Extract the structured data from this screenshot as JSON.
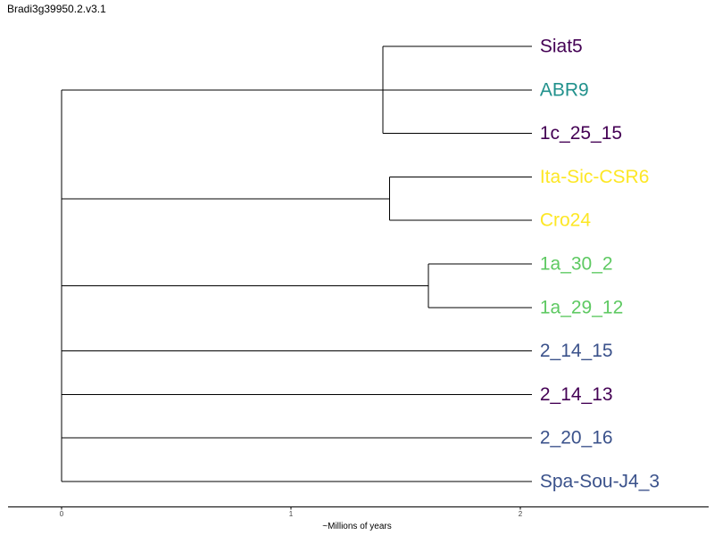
{
  "title": "Bradi3g39950.2.v3.1",
  "colors": {
    "purple": "#440154",
    "teal": "#21918c",
    "yellow": "#fde725",
    "green": "#5ec962",
    "blue": "#3b528b"
  },
  "tree": {
    "leaves": [
      {
        "name": "Siat5",
        "color": "#440154"
      },
      {
        "name": "ABR9",
        "color": "#21918c"
      },
      {
        "name": "1c_25_15",
        "color": "#440154"
      },
      {
        "name": "Ita-Sic-CSR6",
        "color": "#fde725"
      },
      {
        "name": "Cro24",
        "color": "#fde725"
      },
      {
        "name": "1a_30_2",
        "color": "#5ec962"
      },
      {
        "name": "1a_29_12",
        "color": "#5ec962"
      },
      {
        "name": "2_14_15",
        "color": "#3b528b"
      },
      {
        "name": "2_14_13",
        "color": "#440154"
      },
      {
        "name": "2_20_16",
        "color": "#3b528b"
      },
      {
        "name": "Spa-Sou-J4_3",
        "color": "#3b528b"
      }
    ],
    "leaf_time": 2.05,
    "clades": [
      {
        "leaves": [
          0,
          1,
          2
        ],
        "time": 1.4
      },
      {
        "leaves": [
          3,
          4
        ],
        "time": 1.43
      },
      {
        "leaves": [
          5,
          6
        ],
        "time": 1.6
      }
    ],
    "root_children": [
      {
        "clade": 0
      },
      {
        "clade": 1
      },
      {
        "clade": 2
      },
      {
        "leaf": 7
      },
      {
        "leaf": 8
      },
      {
        "leaf": 9
      },
      {
        "leaf": 10
      }
    ]
  },
  "axis": {
    "ticks": [
      "0",
      "1",
      "2"
    ],
    "label": "~Millions of years"
  }
}
